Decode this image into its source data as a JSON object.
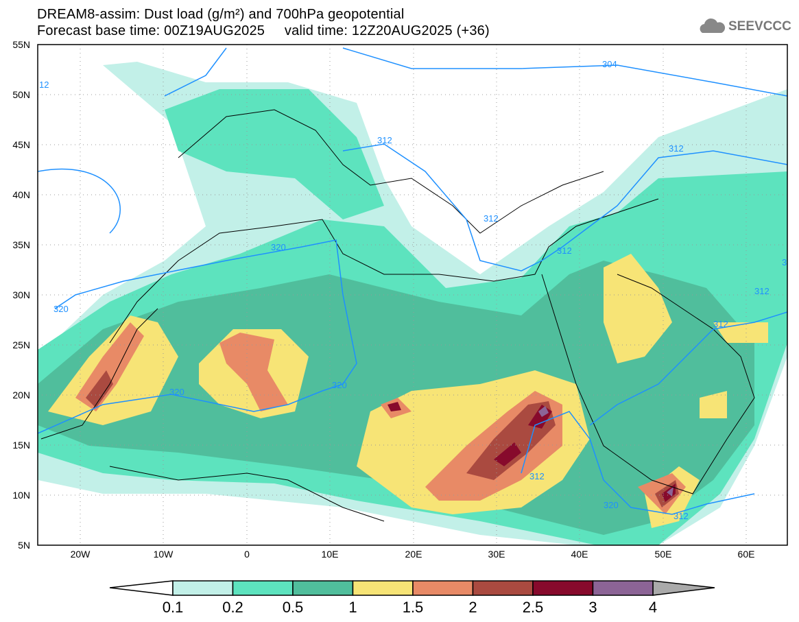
{
  "header": {
    "title": "DREAM8-assim: Dust load (g/m²) and 700hPa geopotential",
    "subtitle": "Forecast base time: 00Z19AUG2025     valid time: 12Z20AUG2025 (+36)",
    "logo": "SEEVCCC"
  },
  "axes": {
    "lat_labels": [
      "55N",
      "50N",
      "45N",
      "40N",
      "35N",
      "30N",
      "25N",
      "20N",
      "15N",
      "10N",
      "5N"
    ],
    "lon_labels": [
      "20W",
      "10W",
      "0",
      "10E",
      "20E",
      "30E",
      "40E",
      "50E",
      "60E"
    ]
  },
  "contour_labels": [
    "304",
    "312",
    "312",
    "312",
    "312",
    "312",
    "312",
    "312",
    "312",
    "320",
    "320",
    "320",
    "320",
    "320",
    "12",
    "3"
  ],
  "colorbar": {
    "ticks": [
      "0.1",
      "0.2",
      "0.5",
      "1",
      "1.5",
      "2",
      "2.5",
      "3",
      "4"
    ],
    "colors": [
      "#c2f0e8",
      "#5de3be",
      "#50be9c",
      "#f7e476",
      "#e88a66",
      "#aa4a40",
      "#870a2c",
      "#8c6496"
    ],
    "over_color": "#aaaaaa",
    "under_color": "#ffffff"
  }
}
